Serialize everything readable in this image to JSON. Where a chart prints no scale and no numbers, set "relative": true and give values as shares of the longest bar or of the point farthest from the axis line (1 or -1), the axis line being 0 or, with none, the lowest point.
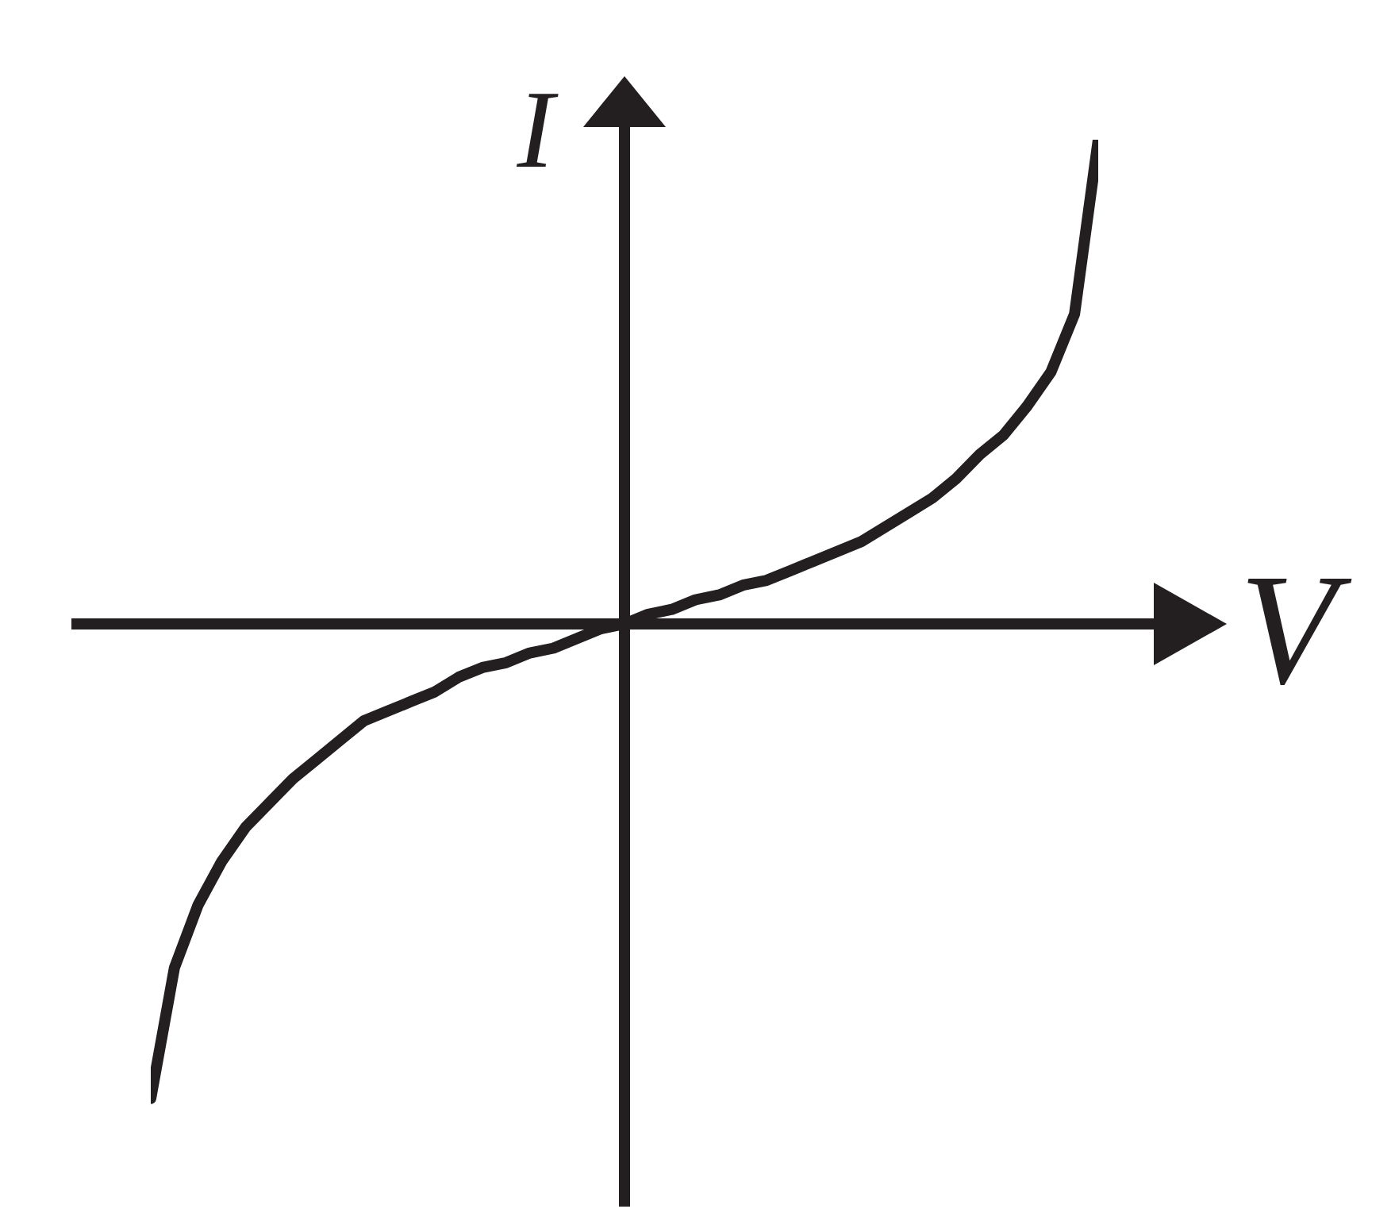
{
  "chart_data": {
    "type": "line",
    "xlabel": "V",
    "ylabel": "I",
    "relative": true,
    "categories": [
      null,
      null,
      null,
      null,
      null,
      null,
      null,
      null,
      null,
      null,
      null,
      null,
      null,
      null,
      null,
      null,
      null,
      null,
      null,
      null,
      null,
      null,
      null,
      null,
      null,
      null,
      null,
      null,
      null,
      null,
      null,
      null,
      null,
      null,
      null,
      null,
      null,
      null,
      null,
      null,
      null
    ],
    "series": [
      {
        "color": "#231f20",
        "values": [
          -0.98,
          -0.71,
          -0.58,
          -0.49,
          -0.42,
          -0.37,
          -0.32,
          -0.28,
          -0.24,
          -0.2,
          -0.18,
          -0.16,
          -0.14,
          -0.11,
          -0.09,
          -0.08,
          -0.06,
          -0.05,
          -0.03,
          -0.01,
          0,
          0.02,
          0.03,
          0.05,
          0.06,
          0.08,
          0.09,
          0.11,
          0.13,
          0.15,
          0.17,
          0.2,
          0.23,
          0.26,
          0.3,
          0.35,
          0.39,
          0.45,
          0.52,
          0.64,
          1
        ]
      }
    ],
    "line_style": "solid"
  }
}
